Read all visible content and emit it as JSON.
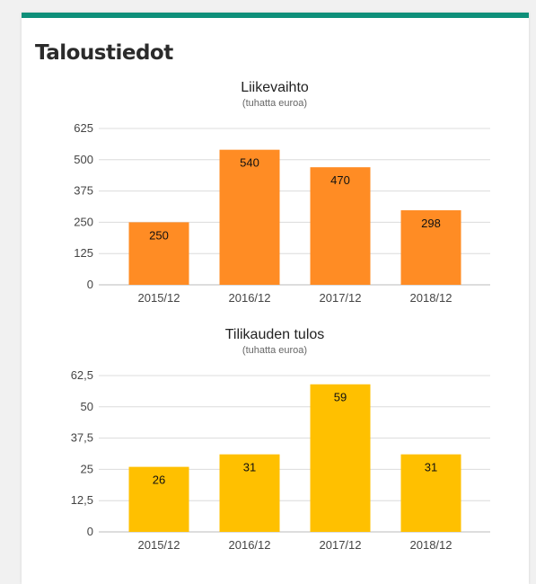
{
  "page": {
    "title": "Taloustiedot"
  },
  "chart_data": [
    {
      "type": "bar",
      "title": "Liikevaihto",
      "subtitle": "(tuhatta euroa)",
      "categories": [
        "2015/12",
        "2016/12",
        "2017/12",
        "2018/12"
      ],
      "values": [
        250,
        540,
        470,
        298
      ],
      "ylim": [
        0,
        625
      ],
      "yticks": [
        0,
        125,
        250,
        375,
        500,
        625
      ],
      "ytick_labels": [
        "0",
        "125",
        "250",
        "375",
        "500",
        "625"
      ],
      "color": "#ff8c24",
      "grid": true
    },
    {
      "type": "bar",
      "title": "Tilikauden tulos",
      "subtitle": "(tuhatta euroa)",
      "categories": [
        "2015/12",
        "2016/12",
        "2017/12",
        "2018/12"
      ],
      "values": [
        26,
        31,
        59,
        31
      ],
      "ylim": [
        0,
        62.5
      ],
      "yticks": [
        0,
        12.5,
        25,
        37.5,
        50,
        62.5
      ],
      "ytick_labels": [
        "0",
        "12,5",
        "25",
        "37,5",
        "50",
        "62,5"
      ],
      "color": "#ffc000",
      "grid": true
    }
  ]
}
